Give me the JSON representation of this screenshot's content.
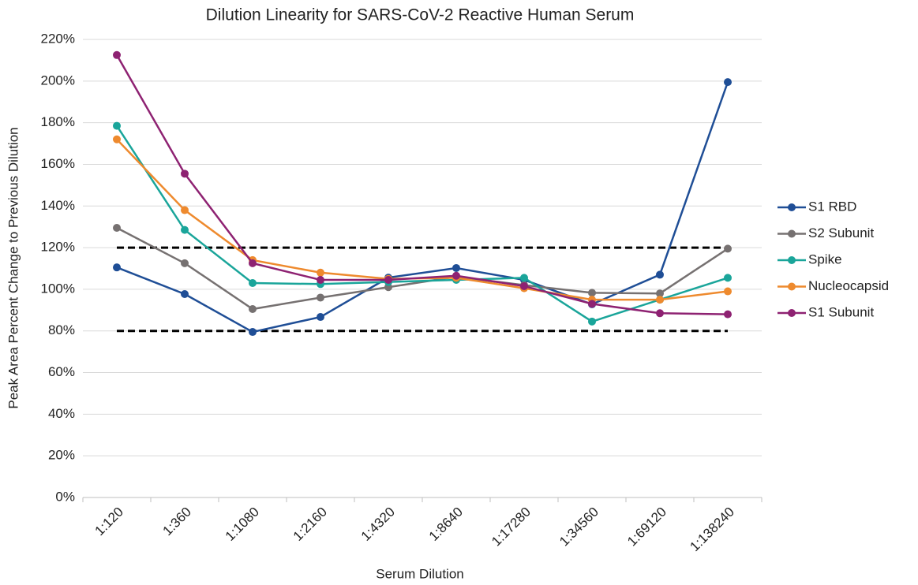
{
  "chart_data": {
    "type": "line",
    "title": "Dilution Linearity for SARS-CoV-2 Reactive Human Serum",
    "x_label": "Serum Dilution",
    "y_label": "Peak Area Percent Change to Previous Dilution",
    "categories": [
      "1:120",
      "1:360",
      "1:1080",
      "1:2160",
      "1:4320",
      "1:8640",
      "1:17280",
      "1:34560",
      "1:69120",
      "1:138240"
    ],
    "series": [
      {
        "name": "S1 RBD",
        "color": "#1f4e96",
        "values": [
          110.5,
          97.7,
          79.5,
          86.7,
          105.6,
          110.2,
          104.5,
          92.8,
          107,
          199.5
        ]
      },
      {
        "name": "S2 Subunit",
        "color": "#767171",
        "values": [
          129.5,
          112.5,
          90.5,
          96,
          101,
          106,
          102,
          98.3,
          98,
          119.5
        ]
      },
      {
        "name": "Spike",
        "color": "#1aa59a",
        "values": [
          178.5,
          128.5,
          103,
          102.5,
          103.5,
          104.5,
          105.5,
          84.5,
          95,
          105.5
        ]
      },
      {
        "name": "Nucleocapsid",
        "color": "#ee8a2e",
        "values": [
          172,
          138,
          114,
          108,
          105,
          105.5,
          100.5,
          95,
          95,
          99
        ]
      },
      {
        "name": "S1 Subunit",
        "color": "#8e2272",
        "values": [
          212.5,
          155.5,
          112.5,
          104.5,
          104.5,
          106.5,
          101.5,
          93,
          88.5,
          88
        ]
      }
    ],
    "reference_lines": [
      120,
      80
    ],
    "ylim": [
      0,
      220
    ],
    "yticks": [
      {
        "value": 0,
        "label": "0%"
      },
      {
        "value": 20,
        "label": "20%"
      },
      {
        "value": 40,
        "label": "40%"
      },
      {
        "value": 60,
        "label": "60%"
      },
      {
        "value": 80,
        "label": "80%"
      },
      {
        "value": 100,
        "label": "100%"
      },
      {
        "value": 120,
        "label": "120%"
      },
      {
        "value": 140,
        "label": "140%"
      },
      {
        "value": 160,
        "label": "160%"
      },
      {
        "value": 180,
        "label": "180%"
      },
      {
        "value": 200,
        "label": "200%"
      },
      {
        "value": 220,
        "label": "220%"
      }
    ],
    "grid": true,
    "legend": "right"
  }
}
